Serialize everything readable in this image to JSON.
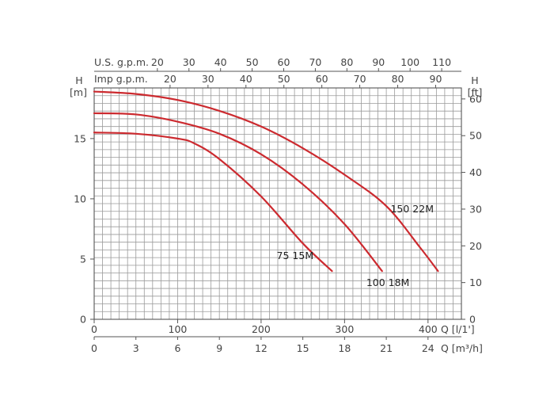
{
  "chart_data": {
    "type": "line",
    "title": "",
    "x_axes": {
      "primary": {
        "label": "Q [l/1']",
        "range": [
          0,
          440
        ],
        "ticks": [
          0,
          100,
          200,
          300,
          400
        ]
      },
      "m3h": {
        "label": "Q [m³/h]",
        "ticks": [
          0,
          3,
          6,
          9,
          12,
          15,
          18,
          21,
          24
        ]
      },
      "us_gpm": {
        "label": "U.S. g.p.m.",
        "ticks": [
          20,
          30,
          40,
          50,
          60,
          70,
          80,
          90,
          100,
          110
        ]
      },
      "imp_gpm": {
        "label": "Imp g.p.m.",
        "ticks": [
          20,
          30,
          40,
          50,
          60,
          70,
          80,
          90
        ]
      }
    },
    "y_axes": {
      "left": {
        "label_top": "H",
        "unit": "[m]",
        "range": [
          0,
          19.2
        ],
        "ticks": [
          0,
          5,
          10,
          15
        ]
      },
      "right": {
        "label_top": "H",
        "unit": "[ft]",
        "ticks": [
          0,
          10,
          20,
          30,
          40,
          50,
          60
        ]
      }
    },
    "grid": true,
    "series": [
      {
        "name": "75 15M",
        "x": [
          0,
          50,
          100,
          120,
          150,
          200,
          250,
          285
        ],
        "y": [
          15.5,
          15.4,
          15.0,
          14.6,
          13.3,
          10.2,
          6.3,
          4.0
        ]
      },
      {
        "name": "100 18M",
        "x": [
          0,
          50,
          100,
          150,
          200,
          250,
          300,
          345
        ],
        "y": [
          17.1,
          17.0,
          16.4,
          15.4,
          13.7,
          11.2,
          7.9,
          4.0
        ]
      },
      {
        "name": "150 22M",
        "x": [
          0,
          50,
          100,
          150,
          200,
          250,
          300,
          350,
          390,
          412
        ],
        "y": [
          18.9,
          18.7,
          18.2,
          17.3,
          16.0,
          14.2,
          12.0,
          9.4,
          6.0,
          4.0
        ]
      }
    ]
  }
}
